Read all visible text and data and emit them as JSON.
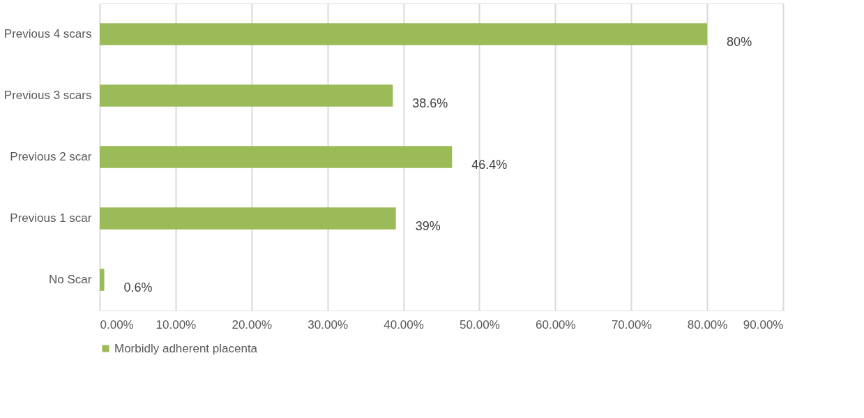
{
  "chart_data": {
    "type": "bar",
    "orientation": "horizontal",
    "categories": [
      "Previous 4 scars",
      "Previous 3 scars",
      "Previous 2 scar",
      "Previous 1 scar",
      "No Scar"
    ],
    "series": [
      {
        "name": "Morbidly adherent placenta",
        "color": "#9bbb59",
        "values": [
          80,
          38.6,
          46.4,
          39,
          0.6
        ]
      }
    ],
    "value_labels": [
      "80%",
      "38.6%",
      "46.4%",
      "39%",
      "0.6%"
    ],
    "xlim": [
      0,
      90
    ],
    "xticks": [
      {
        "value": 0,
        "label": "0.00%"
      },
      {
        "value": 10,
        "label": "10.00%"
      },
      {
        "value": 20,
        "label": "20.00%"
      },
      {
        "value": 30,
        "label": "30.00%"
      },
      {
        "value": 40,
        "label": "40.00%"
      },
      {
        "value": 50,
        "label": "50.00%"
      },
      {
        "value": 60,
        "label": "60.00%"
      },
      {
        "value": 70,
        "label": "70.00%"
      },
      {
        "value": 80,
        "label": "80.00%"
      },
      {
        "value": 90,
        "label": "90.00%"
      }
    ],
    "grid": "x",
    "legend": "bottom"
  }
}
